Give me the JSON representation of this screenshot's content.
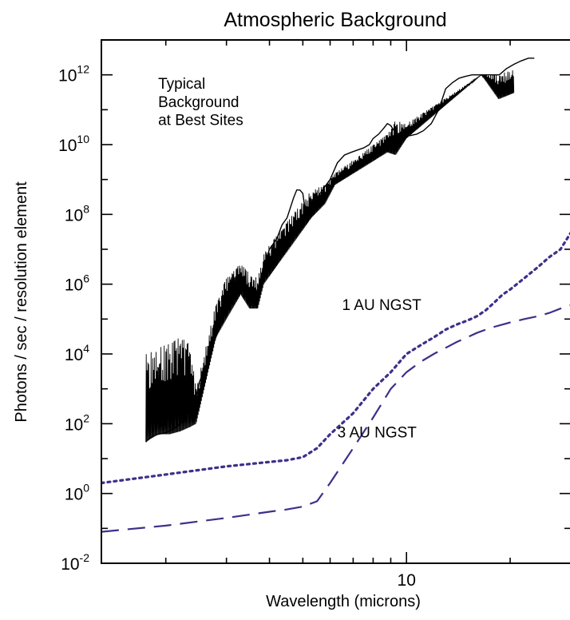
{
  "chart_data": {
    "type": "line",
    "title": "Atmospheric Background",
    "xlabel": "Wavelength (microns)",
    "ylabel": "Photons / sec / resolution element",
    "xscale": "log",
    "yscale": "log",
    "xlim": [
      1.3,
      30
    ],
    "ylim": [
      0.01,
      10000000000000.0
    ],
    "grid": false,
    "x_tick_labels": [
      {
        "value": 10,
        "label": "10"
      }
    ],
    "y_tick_labels": [
      {
        "value": 0.01,
        "base": "10",
        "exp": "-2"
      },
      {
        "value": 1,
        "base": "10",
        "exp": "0"
      },
      {
        "value": 100,
        "base": "10",
        "exp": "2"
      },
      {
        "value": 10000,
        "base": "10",
        "exp": "4"
      },
      {
        "value": 1000000,
        "base": "10",
        "exp": "6"
      },
      {
        "value": 100000000,
        "base": "10",
        "exp": "8"
      },
      {
        "value": 10000000000,
        "base": "10",
        "exp": "10"
      },
      {
        "value": 1000000000000,
        "base": "10",
        "exp": "12"
      }
    ],
    "annotations": [
      {
        "text": "Typical",
        "x": 1.9,
        "y": 400000000000.0
      },
      {
        "text": "Background",
        "x": 1.9,
        "y": 120000000000.0
      },
      {
        "text": "at Best Sites",
        "x": 1.9,
        "y": 36000000000.0
      },
      {
        "text": "1 AU NGST",
        "x": 6.5,
        "y": 180000.0
      },
      {
        "text": "3 AU NGST",
        "x": 6.3,
        "y": 40
      }
    ],
    "series": [
      {
        "name": "Typical Background at Best Sites",
        "style": "solid-noisy",
        "color": "#000000",
        "x": [
          1.75,
          1.8,
          1.9,
          2.0,
          2.1,
          2.2,
          2.3,
          2.45,
          2.5,
          2.6,
          2.7,
          2.85,
          3.0,
          3.15,
          3.3,
          3.45,
          3.6,
          3.8,
          4.0,
          4.2,
          4.35,
          4.5,
          4.7,
          4.8,
          4.9,
          5.0,
          5.1,
          5.2,
          5.35,
          5.5,
          5.7,
          6.0,
          6.3,
          6.6,
          6.9,
          7.2,
          7.5,
          7.8,
          8.0,
          8.3,
          8.6,
          8.8,
          9.0,
          9.2,
          9.5,
          9.8,
          10.2,
          10.7,
          11.2,
          11.8,
          12.4,
          13.0,
          13.6,
          14.2,
          14.8,
          15.5,
          16.0,
          16.4,
          17.0,
          17.8,
          18.6,
          19.5,
          20.5,
          21.5,
          22.6,
          23.5
        ],
        "y": [
          30,
          40,
          50,
          55,
          70,
          100,
          180,
          600,
          1500,
          4000,
          12000,
          50000,
          200000,
          500000,
          800000,
          400000,
          300000,
          2000000,
          10000000,
          20000000,
          50000000,
          80000000,
          300000000,
          500000000,
          500000000,
          400000000,
          100000000,
          120000000,
          200000000,
          300000000,
          500000000,
          1000000000,
          3000000000,
          5000000000,
          6000000000,
          7000000000,
          8000000000,
          10000000000,
          15000000000,
          20000000000,
          30000000000,
          40000000000,
          35000000000,
          25000000000,
          20000000000,
          20000000000,
          18000000000,
          20000000000,
          25000000000,
          40000000000,
          100000000000,
          400000000000,
          600000000000,
          800000000000,
          900000000000,
          1000000000000,
          1000000000000,
          1000000000000,
          1000000000000,
          1000000000000,
          1000000000000,
          1500000000000,
          2000000000000,
          2500000000000,
          3000000000000,
          3000000000000
        ],
        "noise_envelope": {
          "x": [
            1.75,
            1.9,
            2.05,
            2.2,
            2.35,
            2.45,
            2.8,
            3.0,
            3.3,
            3.5,
            3.7,
            3.85,
            5.3,
            5.8,
            6.2,
            8.8,
            9.3,
            10.0,
            16.5,
            18.5,
            20.5
          ],
          "lower": [
            30,
            50,
            50,
            60,
            80,
            100,
            30000,
            100000,
            500000,
            200000,
            200000,
            1000000,
            80000000,
            200000000,
            700000000,
            6000000000,
            5000000000,
            15000000000,
            1000000000000,
            200000000000,
            300000000000
          ],
          "upper": [
            10000,
            15000,
            20000,
            30000,
            20000,
            1000,
            300000,
            1500000,
            4000000,
            2000000,
            1500000,
            8000000,
            500000000,
            700000000,
            1500000000,
            20000000000,
            50000000000,
            40000000000,
            1000000000000,
            1000000000000,
            1500000000000
          ]
        }
      },
      {
        "name": "1 AU NGST",
        "style": "dotted",
        "color": "#3f2f8a",
        "x": [
          1.3,
          2.0,
          3.0,
          4.0,
          4.5,
          5.0,
          5.5,
          6.0,
          7.0,
          8.0,
          9.0,
          10.0,
          11.0,
          12.0,
          13.0,
          14.0,
          15.0,
          16.0,
          17.0,
          18.0,
          19.0,
          20.0,
          22.0,
          24.0,
          26.0,
          28.0,
          30.0
        ],
        "y": [
          2.0,
          3.5,
          6.0,
          8.0,
          9.0,
          11,
          20,
          50,
          200,
          1000,
          3000,
          10000,
          18000,
          30000,
          50000,
          70000,
          90000,
          120000,
          180000,
          300000,
          500000,
          700000,
          1500000,
          3000000,
          6000000,
          10000000,
          30000000
        ]
      },
      {
        "name": "3 AU NGST",
        "style": "dashed",
        "color": "#3f2f8a",
        "x": [
          1.3,
          2.0,
          3.0,
          4.0,
          4.5,
          5.0,
          5.5,
          6.0,
          7.0,
          8.0,
          9.0,
          10.0,
          11.0,
          12.0,
          13.0,
          14.0,
          15.0,
          16.0,
          17.0,
          18.0,
          20.0,
          22.0,
          24.0,
          26.0,
          28.0,
          30.0
        ],
        "y": [
          0.08,
          0.12,
          0.2,
          0.3,
          0.35,
          0.42,
          0.6,
          2.0,
          20,
          150,
          1000,
          3000,
          6000,
          10000,
          15000,
          22000,
          30000,
          40000,
          50000,
          60000,
          80000,
          100000,
          120000,
          150000,
          200000,
          250000
        ]
      }
    ]
  }
}
